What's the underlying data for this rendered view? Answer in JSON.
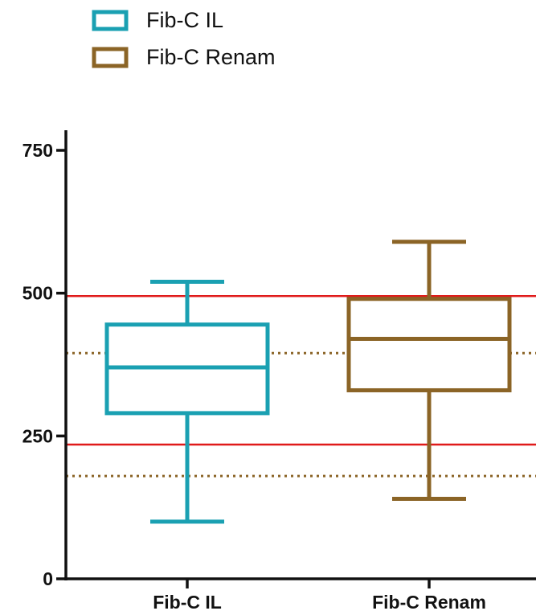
{
  "chart_data": {
    "type": "box",
    "ylim": [
      0,
      800
    ],
    "yticks": [
      0,
      250,
      500,
      750
    ],
    "categories": [
      "Fib-C IL",
      "Fib-C Renam"
    ],
    "legend": {
      "position": "top-left",
      "entries": [
        "Fib-C IL",
        "Fib-C Renam"
      ]
    },
    "series": [
      {
        "name": "Fib-C IL",
        "color": "#1aa0b2",
        "min": 100,
        "q1": 290,
        "median": 370,
        "q3": 445,
        "max": 520
      },
      {
        "name": "Fib-C Renam",
        "color": "#8b6426",
        "min": 140,
        "q1": 330,
        "median": 420,
        "q3": 490,
        "max": 590
      }
    ],
    "reference_lines": [
      {
        "value": 495,
        "color": "#e01a1a",
        "style": "solid"
      },
      {
        "value": 235,
        "color": "#e01a1a",
        "style": "solid"
      },
      {
        "value": 395,
        "color": "#8b6426",
        "style": "dotted"
      },
      {
        "value": 180,
        "color": "#8b6426",
        "style": "dotted"
      }
    ]
  }
}
